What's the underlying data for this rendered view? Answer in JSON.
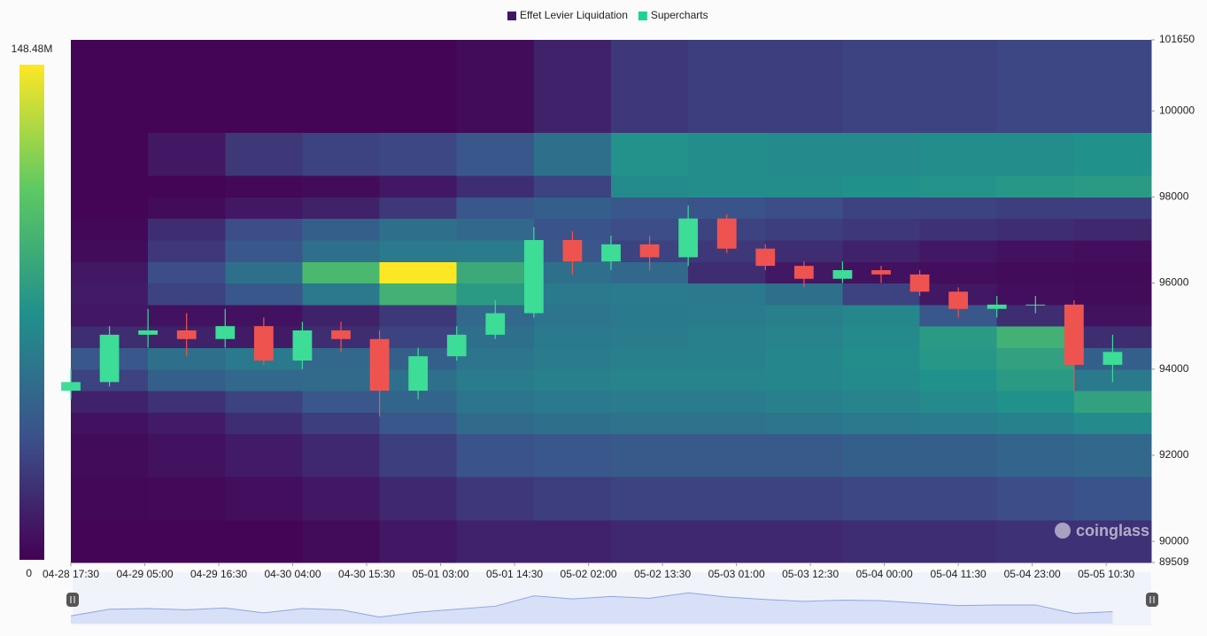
{
  "chart_data": {
    "type": "heatmap",
    "legend": [
      {
        "name": "Effet Levier Liquidation",
        "color": "#3f1569"
      },
      {
        "name": "Supercharts",
        "color": "#1ed391"
      }
    ],
    "watermark": "coinglass",
    "xlim": [
      0,
      168
    ],
    "xticks": [
      {
        "value": 0,
        "label": "04-28 17:30"
      },
      {
        "value": 11.5,
        "label": "04-29 05:00"
      },
      {
        "value": 23,
        "label": "04-29 16:30"
      },
      {
        "value": 34.5,
        "label": "04-30 04:00"
      },
      {
        "value": 46,
        "label": "04-30 15:30"
      },
      {
        "value": 57.5,
        "label": "05-01 03:00"
      },
      {
        "value": 69,
        "label": "05-01 14:30"
      },
      {
        "value": 80.5,
        "label": "05-02 02:00"
      },
      {
        "value": 92,
        "label": "05-02 13:30"
      },
      {
        "value": 103.5,
        "label": "05-03 01:00"
      },
      {
        "value": 115,
        "label": "05-03 12:30"
      },
      {
        "value": 126.5,
        "label": "05-04 00:00"
      },
      {
        "value": 138,
        "label": "05-04 11:30"
      },
      {
        "value": 149.5,
        "label": "05-04 23:00"
      },
      {
        "value": 161,
        "label": "05-05 10:30"
      }
    ],
    "ylim": [
      89509,
      101650
    ],
    "yticks": [
      89509,
      90000,
      92000,
      94000,
      96000,
      98000,
      100000,
      101650
    ],
    "zlim": [
      0,
      148.48
    ],
    "zticks": [
      {
        "value": 148.48,
        "label": "148.48M"
      },
      0
    ],
    "colorscale": [
      "#440154",
      "#3b528b",
      "#21918c",
      "#5ec962",
      "#fde725"
    ],
    "x_bins": [
      0,
      12,
      24,
      36,
      48,
      60,
      72,
      84,
      96,
      108,
      120,
      132,
      144,
      156,
      168
    ],
    "y_bins": [
      89509,
      90500,
      91500,
      92500,
      93000,
      93500,
      94000,
      94500,
      95000,
      95500,
      96000,
      96500,
      97000,
      97500,
      98000,
      98500,
      99500,
      101650
    ],
    "z": [
      [
        2,
        2,
        2,
        5,
        10,
        15,
        15,
        18,
        18,
        18,
        20,
        20,
        22,
        22
      ],
      [
        3,
        4,
        6,
        10,
        18,
        25,
        28,
        30,
        30,
        30,
        32,
        32,
        35,
        38
      ],
      [
        5,
        8,
        12,
        18,
        28,
        38,
        40,
        42,
        42,
        42,
        45,
        45,
        48,
        50
      ],
      [
        8,
        12,
        20,
        28,
        40,
        52,
        55,
        56,
        56,
        58,
        60,
        62,
        65,
        70
      ],
      [
        15,
        22,
        30,
        40,
        48,
        58,
        60,
        62,
        62,
        64,
        66,
        70,
        74,
        85
      ],
      [
        30,
        45,
        50,
        52,
        55,
        62,
        64,
        66,
        66,
        68,
        70,
        74,
        80,
        60
      ],
      [
        40,
        55,
        60,
        50,
        45,
        58,
        62,
        64,
        65,
        68,
        72,
        78,
        85,
        45
      ],
      [
        20,
        15,
        12,
        20,
        30,
        55,
        60,
        62,
        64,
        66,
        70,
        80,
        95,
        20
      ],
      [
        10,
        8,
        8,
        15,
        25,
        50,
        58,
        60,
        62,
        64,
        68,
        40,
        20,
        8
      ],
      [
        12,
        30,
        40,
        60,
        95,
        80,
        60,
        62,
        60,
        55,
        30,
        10,
        6,
        5
      ],
      [
        10,
        35,
        55,
        100,
        148.48,
        90,
        55,
        50,
        20,
        10,
        8,
        6,
        5,
        4
      ],
      [
        5,
        25,
        40,
        55,
        60,
        62,
        40,
        30,
        25,
        20,
        15,
        10,
        8,
        6
      ],
      [
        3,
        20,
        35,
        45,
        55,
        50,
        38,
        35,
        30,
        28,
        25,
        22,
        20,
        18
      ],
      [
        2,
        5,
        10,
        15,
        25,
        40,
        45,
        40,
        38,
        35,
        30,
        30,
        28,
        28
      ],
      [
        2,
        2,
        3,
        5,
        10,
        20,
        30,
        70,
        72,
        72,
        74,
        76,
        78,
        80
      ],
      [
        2,
        10,
        25,
        30,
        32,
        40,
        55,
        75,
        72,
        70,
        70,
        72,
        72,
        74
      ],
      [
        2,
        2,
        2,
        2,
        2,
        5,
        15,
        25,
        28,
        28,
        30,
        30,
        32,
        32
      ]
    ],
    "candle_colors": {
      "up": "#3ddc97",
      "down": "#ef5350"
    },
    "candles": {
      "x": [
        0,
        6,
        12,
        18,
        24,
        30,
        36,
        42,
        48,
        54,
        60,
        66,
        72,
        78,
        84,
        90,
        96,
        102,
        108,
        114,
        120,
        126,
        132,
        138,
        144,
        150,
        156,
        162
      ],
      "open": [
        93500,
        93700,
        94800,
        94900,
        94700,
        95000,
        94200,
        94900,
        94700,
        93500,
        94300,
        94800,
        95300,
        97000,
        96500,
        96900,
        96600,
        97500,
        96800,
        96400,
        96100,
        96300,
        96200,
        95800,
        95400,
        95500,
        95500,
        94100
      ],
      "high": [
        94000,
        95000,
        95400,
        95300,
        95400,
        95200,
        95100,
        95100,
        94900,
        94500,
        95000,
        95600,
        97300,
        97200,
        97100,
        97100,
        97800,
        97600,
        96900,
        96500,
        96500,
        96400,
        96300,
        95900,
        95700,
        95700,
        95600,
        94800
      ],
      "low": [
        93300,
        93600,
        94500,
        94300,
        94500,
        94100,
        94000,
        94400,
        92900,
        93300,
        94200,
        94700,
        95200,
        96200,
        96300,
        96300,
        96400,
        96700,
        96300,
        95900,
        96000,
        96000,
        95700,
        95200,
        95200,
        95300,
        93500,
        93700
      ],
      "close": [
        93700,
        94800,
        94900,
        94700,
        95000,
        94200,
        94900,
        94700,
        93500,
        94300,
        94800,
        95300,
        97000,
        96500,
        96900,
        96600,
        97500,
        96800,
        96400,
        96100,
        96300,
        96200,
        95800,
        95400,
        95500,
        95500,
        94100,
        94400
      ]
    }
  }
}
